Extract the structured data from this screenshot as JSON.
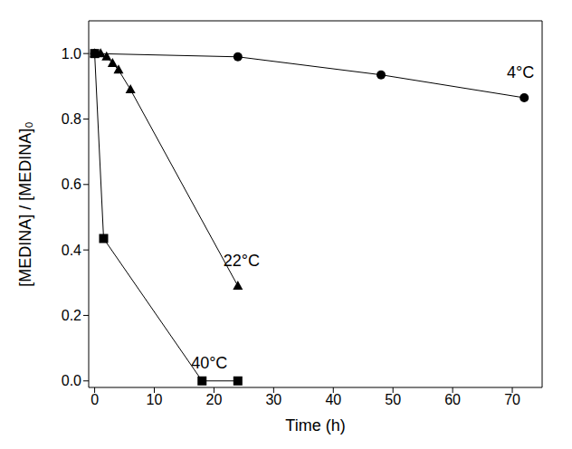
{
  "chart_data": {
    "type": "line",
    "x_label": "Time (h)",
    "y_label": "[MEDINA] / [MEDINA]₀",
    "xlim": [
      -1,
      75
    ],
    "xticks": [
      0,
      10,
      20,
      30,
      40,
      50,
      60,
      70
    ],
    "ylim": [
      -0.02,
      1.1
    ],
    "yticks": [
      {
        "value": 0,
        "label": "0.0"
      },
      {
        "value": 0.2,
        "label": "0.2"
      },
      {
        "value": 0.4,
        "label": "0.4"
      },
      {
        "value": 0.6,
        "label": "0.6"
      },
      {
        "value": 0.8,
        "label": "0.8"
      },
      {
        "value": 1,
        "label": "1.0"
      }
    ],
    "grid": false,
    "series": [
      {
        "name": "4°C",
        "color": "#000000",
        "marker": "circle",
        "x": [
          0,
          24,
          48,
          72
        ],
        "values": [
          1.0,
          0.99,
          0.935,
          0.865
        ]
      },
      {
        "name": "22°C",
        "color": "#000000",
        "marker": "triangle",
        "x": [
          0,
          1,
          2,
          3,
          4,
          6,
          24
        ],
        "values": [
          1.0,
          1.0,
          0.99,
          0.97,
          0.95,
          0.89,
          0.29
        ]
      },
      {
        "name": "40°C",
        "color": "#000000",
        "marker": "square",
        "x": [
          0,
          1.5,
          18,
          24
        ],
        "values": [
          1.0,
          0.435,
          0.0,
          0.0
        ]
      }
    ]
  }
}
